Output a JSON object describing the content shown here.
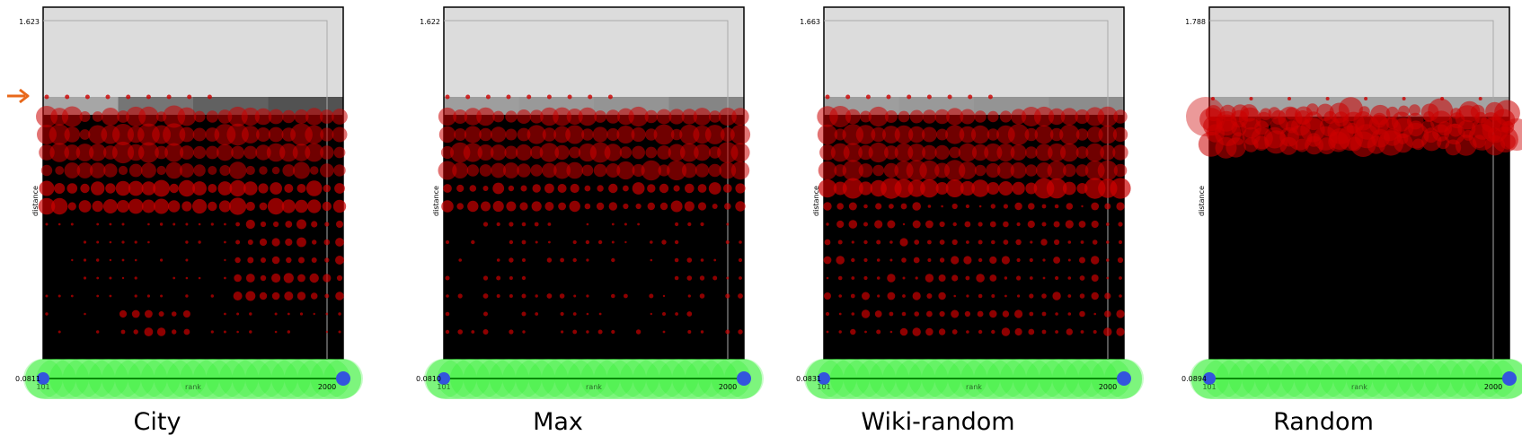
{
  "chart_data": [
    {
      "type": "scatter",
      "title": "City",
      "xlabel": "rank",
      "ylabel": "distance",
      "x_ticks": [
        "101",
        "2000"
      ],
      "y_ticks": [
        "0.0811",
        "1.623"
      ],
      "xlim": [
        101,
        2000
      ],
      "ylim": [
        0.0811,
        1.623
      ],
      "marker_arrow": true,
      "band_levels": [
        0.65,
        0.46,
        0.38,
        0.32
      ],
      "seed": 11,
      "pattern": "city"
    },
    {
      "type": "scatter",
      "title": "Max",
      "xlabel": "rank",
      "ylabel": "distance",
      "x_ticks": [
        "101",
        "2000"
      ],
      "y_ticks": [
        "0.0810",
        "1.622"
      ],
      "xlim": [
        101,
        2000
      ],
      "ylim": [
        0.081,
        1.622
      ],
      "marker_arrow": false,
      "band_levels": [
        0.62,
        0.6,
        0.58,
        0.52
      ],
      "seed": 23,
      "pattern": "max"
    },
    {
      "type": "scatter",
      "title": "Wiki-random",
      "xlabel": "rank",
      "ylabel": "distance",
      "x_ticks": [
        "101",
        "2000"
      ],
      "y_ticks": [
        "0.0831",
        "1.663"
      ],
      "xlim": [
        101,
        2000
      ],
      "ylim": [
        0.0831,
        1.663
      ],
      "marker_arrow": false,
      "band_levels": [
        0.62,
        0.6,
        0.58,
        0.55
      ],
      "seed": 37,
      "pattern": "wiki"
    },
    {
      "type": "scatter",
      "title": "Random",
      "xlabel": "rank",
      "ylabel": "distance",
      "x_ticks": [
        "101",
        "2000"
      ],
      "y_ticks": [
        "0.0894",
        "1.788"
      ],
      "xlim": [
        101,
        2000
      ],
      "ylim": [
        0.0894,
        1.788
      ],
      "marker_arrow": false,
      "band_levels": [
        0.64,
        0.64,
        0.64,
        0.64
      ],
      "seed": 53,
      "pattern": "random"
    }
  ],
  "colors": {
    "background": "#000000",
    "upper_region": "#dcdcdc",
    "dots": "#cc0000",
    "dots_bright": "#ff3030",
    "baseline": "#22ee22",
    "endpoint": "#3355dd",
    "arrow": "#e8681a"
  }
}
